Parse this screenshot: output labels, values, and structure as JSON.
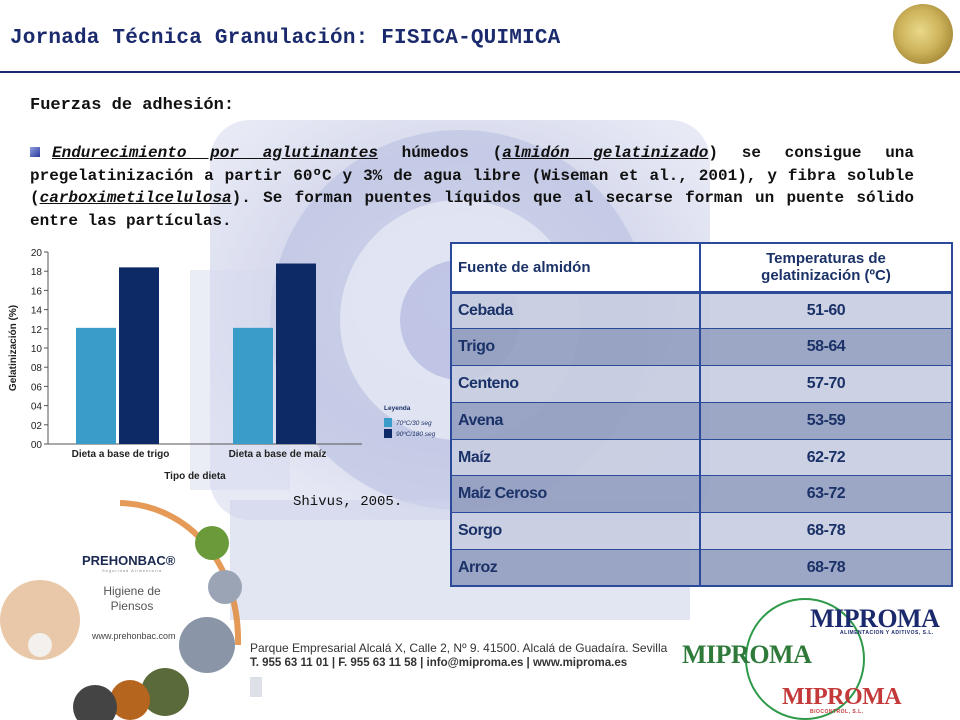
{
  "header": {
    "title": "Jornada Técnica Granulación: FISICA-QUIMICA",
    "image_icon": "granulate-icon"
  },
  "section": {
    "title": "Fuerzas de adhesión:"
  },
  "paragraph": {
    "term1": "Endurecimiento por aglutinantes",
    "text1": " húmedos (",
    "term2": "almidón gelatinizado",
    "text2": ") se consigue una pregelatinización a partir 60ºC y 3% de agua libre (Wiseman et al., 2001), y fibra soluble (",
    "term3": "carboximetilcelulosa",
    "text3": "). Se forman puentes líquidos que al secarse forman un puente sólido entre las partículas."
  },
  "chart_data": {
    "type": "bar",
    "ylabel": "Gelatinización (%)",
    "xlabel": "Tipo de dieta",
    "categories": [
      "Dieta a base de trigo",
      "Dieta a base de maíz"
    ],
    "yticks": [
      "20",
      "18",
      "16",
      "14",
      "12",
      "10",
      "08",
      "06",
      "04",
      "02",
      "00"
    ],
    "ylim": [
      0,
      20
    ],
    "legend_title": "Leyenda",
    "legend_placement": "right",
    "series": [
      {
        "name": "70ºC/30 seg",
        "color": "#3a9cc8",
        "values": [
          12.1,
          12.1
        ]
      },
      {
        "name": "90ºC/180 seg",
        "color": "#0d2a66",
        "values": [
          18.4,
          18.8
        ]
      }
    ]
  },
  "citation": "Shivus, 2005.",
  "table": {
    "headers": [
      "Fuente de almidón",
      "Temperaturas de gelatinización (ºC)"
    ],
    "header2_lines": [
      "Temperaturas de",
      "gelatinización (ºC)"
    ],
    "rows": [
      [
        "Cebada",
        "51-60"
      ],
      [
        "Trigo",
        "58-64"
      ],
      [
        "Centeno",
        "57-70"
      ],
      [
        "Avena",
        "53-59"
      ],
      [
        "Maíz",
        "62-72"
      ],
      [
        "Maíz Ceroso",
        "63-72"
      ],
      [
        "Sorgo",
        "68-78"
      ],
      [
        "Arroz",
        "68-78"
      ]
    ]
  },
  "footer": {
    "prehonbac": "PREHONBAC®",
    "prehonbac_sub": "Seguridad Alimentaria",
    "higiene": [
      "Higiene de",
      "Piensos"
    ],
    "prehonbac_url": "www.prehonbac.com",
    "address": "Parque Empresarial Alcalá X, Calle 2, Nº 9. 41500. Alcalá de Guadaíra. Sevilla",
    "contact": "T. 955 63 11 01 | F. 955 63 11 58 | info@miproma.es | www.miproma.es",
    "logos": [
      {
        "name": "MIPROMA",
        "sub": "ALIMENTACION Y ADITIVOS, S.L.",
        "color": "#1b2a6c"
      },
      {
        "name": "MIPROMA",
        "sub": "",
        "color": "#2f7a3a"
      },
      {
        "name": "MIPROMA",
        "sub": "BIOCONTROL, S.L.",
        "color": "#c43a3a"
      }
    ]
  }
}
